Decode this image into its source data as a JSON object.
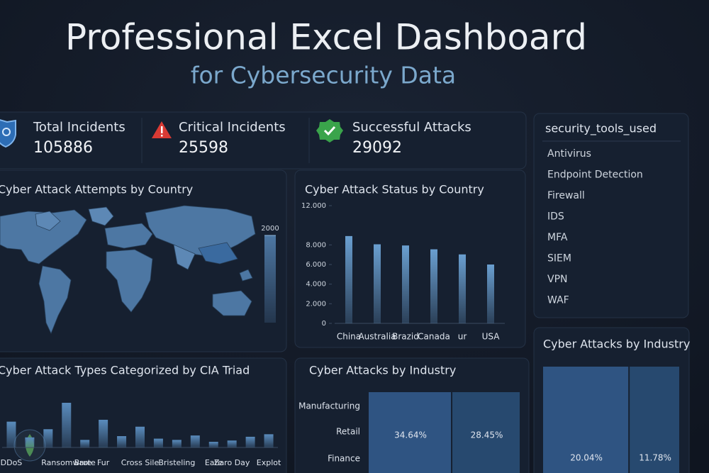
{
  "header": {
    "title": "Professional Excel Dashboard",
    "subtitle": "for Cybersecurity Data"
  },
  "kpis": [
    {
      "label": "Total Incidents",
      "value": 105886
    },
    {
      "label": "Critical Incidents",
      "value": 25598
    },
    {
      "label": "Successful Attacks",
      "value": 29092
    }
  ],
  "tools": {
    "title": "security_tools_used",
    "items": [
      "Antivirus",
      "Endpoint Detection",
      "Firewall",
      "IDS",
      "MFA",
      "SIEM",
      "VPN",
      "WAF"
    ]
  },
  "chart_data": [
    {
      "type": "map",
      "title": "Cyber Attack Attempts by Country",
      "colorbar_lim": [
        0,
        2000
      ],
      "colorbar_ticks": [
        2000
      ],
      "color": "#4d77a3"
    },
    {
      "type": "bar",
      "title": "Cyber Attack Status by Country",
      "categories": [
        "China",
        "Australia",
        "Brazid",
        "Canada",
        "ur",
        "USA"
      ],
      "values": [
        8900,
        8060,
        7940,
        7550,
        7030,
        6000
      ],
      "color": "#6a9fd0",
      "ylim": [
        0,
        12000
      ],
      "yticks": [
        0,
        {
          "value": 2000,
          "label": "2.000"
        },
        {
          "value": 4000,
          "label": "4.000"
        },
        {
          "value": 6000,
          "label": "6.000"
        },
        {
          "value": 8000,
          "label": "8.000"
        },
        {
          "value": 12000,
          "label": "12.000"
        }
      ]
    },
    {
      "type": "bar",
      "title": "Cyber Attack Types Categorized by CIA Triad",
      "categories": [
        "DDoS",
        null,
        null,
        "Ransomware",
        "Brute",
        "Fur",
        null,
        "Cross Sile",
        null,
        "Bristeling",
        null,
        "Eate",
        "Zaro Day",
        null,
        "Explot"
      ],
      "values": [
        41,
        16,
        29,
        71,
        12,
        44,
        18,
        33,
        14,
        12,
        19,
        9,
        11,
        17,
        21
      ],
      "color": "#5a8cbd",
      "ylim": [
        0,
        80
      ]
    },
    {
      "type": "treemap",
      "title": "Cyber Attacks by Industry",
      "row_labels": [
        "Manufacturing",
        "Retail",
        "Finance"
      ],
      "values": [
        34.64,
        28.45
      ],
      "value_labels": [
        "34.64%",
        "28.45%"
      ],
      "colors": [
        "#2f5482",
        "#27496f"
      ]
    },
    {
      "type": "treemap",
      "title": "Cyber Attacks by Industry",
      "values": [
        20.04,
        11.78
      ],
      "value_labels": [
        "20.04%",
        "11.78%"
      ],
      "colors": [
        "#2f5482",
        "#27496f"
      ]
    }
  ]
}
